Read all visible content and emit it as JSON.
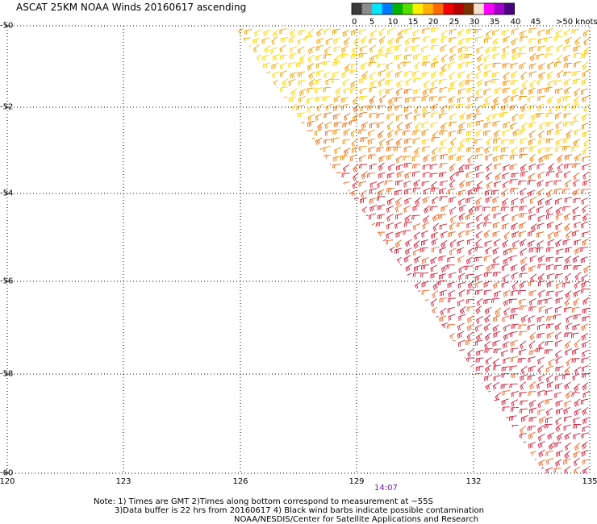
{
  "title": "ASCAT 25KM NOAA Winds 20160617 ascending",
  "legend": {
    "colors": [
      "#3a3a3a",
      "#8c8c8c",
      "#00e5ff",
      "#0077ff",
      "#00b300",
      "#55dd00",
      "#ffee00",
      "#ffb000",
      "#ff6a00",
      "#ee0000",
      "#b80000",
      "#7a3300",
      "#f5e0d0",
      "#ff00ff",
      "#a000c8",
      "#4a0080"
    ],
    "labels": [
      "0",
      "5",
      "10",
      "15",
      "20",
      "25",
      "30",
      "35",
      "40",
      "45",
      ">50 knots"
    ]
  },
  "map": {
    "lon_ticks": [
      "120",
      "123",
      "126",
      "129",
      "132",
      "135"
    ],
    "lat_ticks": [
      "-50",
      "-52",
      "-54",
      "-56",
      "-58",
      "-60"
    ],
    "time_label": "14:07"
  },
  "notes": [
    "Note: 1) Times are GMT 2)Times along bottom correspond to measurement at ~55S",
    "3)Data buffer is 22 hrs from 20160617 4) Black wind barbs indicate possible contamination",
    "NOAA/NESDIS/Center for Satellite Applications and Research"
  ]
}
